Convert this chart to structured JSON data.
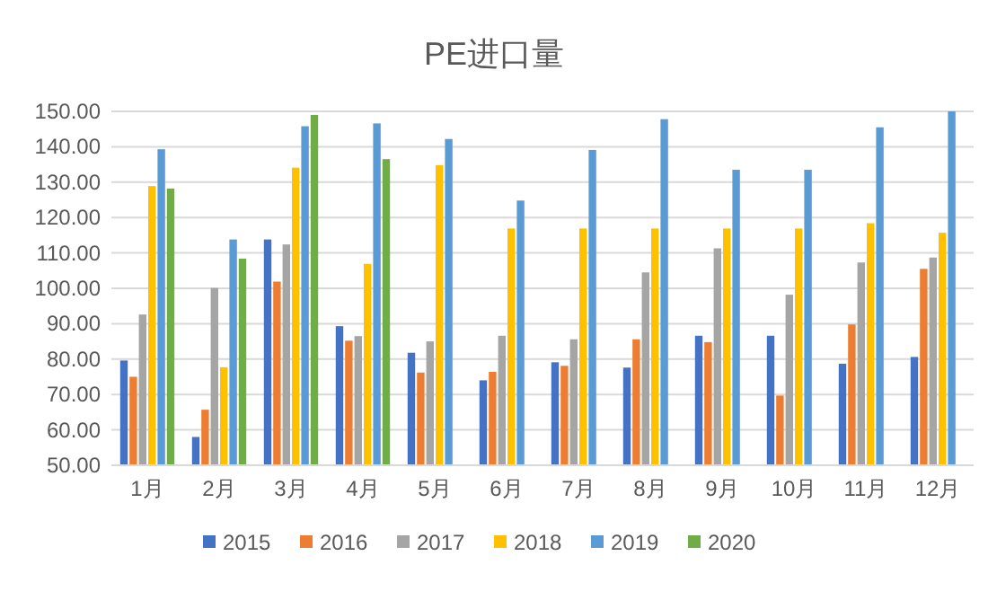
{
  "chart_data": {
    "type": "bar",
    "title": "PE进口量",
    "categories": [
      "1月",
      "2月",
      "3月",
      "4月",
      "5月",
      "6月",
      "7月",
      "8月",
      "9月",
      "10月",
      "11月",
      "12月"
    ],
    "series": [
      {
        "name": "2015",
        "color": "#4472c4",
        "values": [
          79.6,
          58,
          113.8,
          89.3,
          81.8,
          74,
          79.1,
          77.6,
          86.6,
          86.6,
          78.7,
          80.6
        ]
      },
      {
        "name": "2016",
        "color": "#ed7d31",
        "values": [
          75,
          65.7,
          101.9,
          85.2,
          76.2,
          76.4,
          78.1,
          85.6,
          84.8,
          69.7,
          89.8,
          105.5
        ]
      },
      {
        "name": "2017",
        "color": "#a5a5a5",
        "values": [
          92.6,
          100.1,
          112.4,
          86.5,
          85,
          86.6,
          85.6,
          104.5,
          111.3,
          98.2,
          107.3,
          108.7
        ]
      },
      {
        "name": "2018",
        "color": "#ffc000",
        "values": [
          128.9,
          77.7,
          134.1,
          106.9,
          134.8,
          116.9,
          116.9,
          116.9,
          116.9,
          116.9,
          118.4,
          115.7
        ]
      },
      {
        "name": "2019",
        "color": "#5b9bd5",
        "values": [
          139.3,
          113.8,
          145.8,
          146.6,
          142.2,
          124.8,
          139.1,
          147.8,
          133.5,
          133.5,
          145.5,
          150
        ]
      },
      {
        "name": "2020",
        "color": "#70ad47",
        "values": [
          128.2,
          108.4,
          149,
          136.5,
          null,
          null,
          null,
          null,
          null,
          null,
          null,
          null
        ]
      }
    ],
    "ylim": [
      50,
      150
    ],
    "yticks": [
      {
        "value": 50,
        "label": "50.00"
      },
      {
        "value": 60,
        "label": "60.00"
      },
      {
        "value": 70,
        "label": "70.00"
      },
      {
        "value": 80,
        "label": "80.00"
      },
      {
        "value": 90,
        "label": "90.00"
      },
      {
        "value": 100,
        "label": "100.00"
      },
      {
        "value": 110,
        "label": "110.00"
      },
      {
        "value": 120,
        "label": "120.00"
      },
      {
        "value": 130,
        "label": "130.00"
      },
      {
        "value": 140,
        "label": "140.00"
      },
      {
        "value": 150,
        "label": "150.00"
      }
    ],
    "grid": "y",
    "legend": "bottom"
  }
}
